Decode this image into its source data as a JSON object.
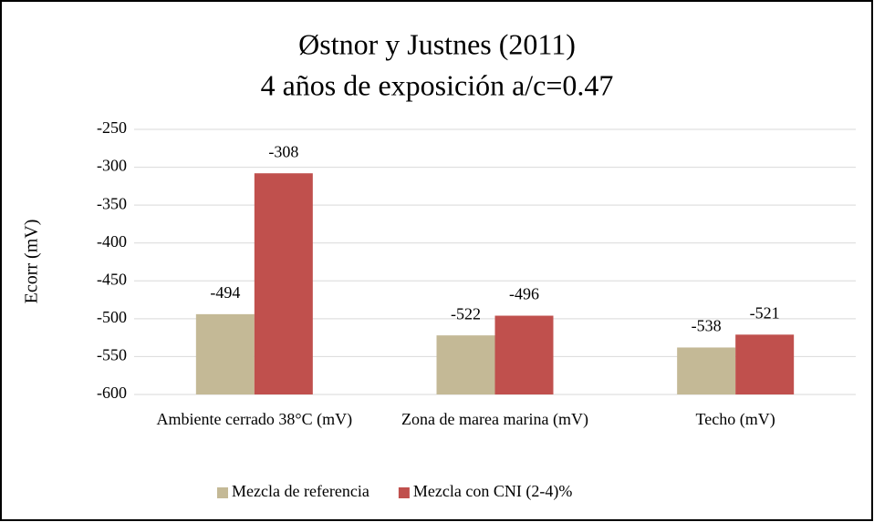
{
  "chart_data": {
    "type": "bar",
    "title": "Østnor y Justnes (2011)",
    "subtitle": "4 años de exposición a/c=0.47",
    "y_label": "Ecorr (mV)",
    "categories": [
      "Ambiente cerrado 38°C (mV)",
      "Zona de marea marina (mV)",
      "Techo (mV)"
    ],
    "series": [
      {
        "name": "Mezcla de referencia",
        "color": "#c4b996",
        "values": [
          -494,
          -522,
          -538
        ]
      },
      {
        "name": "Mezcla con CNI (2-4)%",
        "color": "#c0504d",
        "values": [
          -308,
          -496,
          -521
        ]
      }
    ],
    "ylim": [
      -600,
      -250
    ],
    "yticks": [
      -250,
      -300,
      -350,
      -400,
      -450,
      -500,
      -550,
      -600
    ],
    "grid": true,
    "legend": "bottom"
  }
}
